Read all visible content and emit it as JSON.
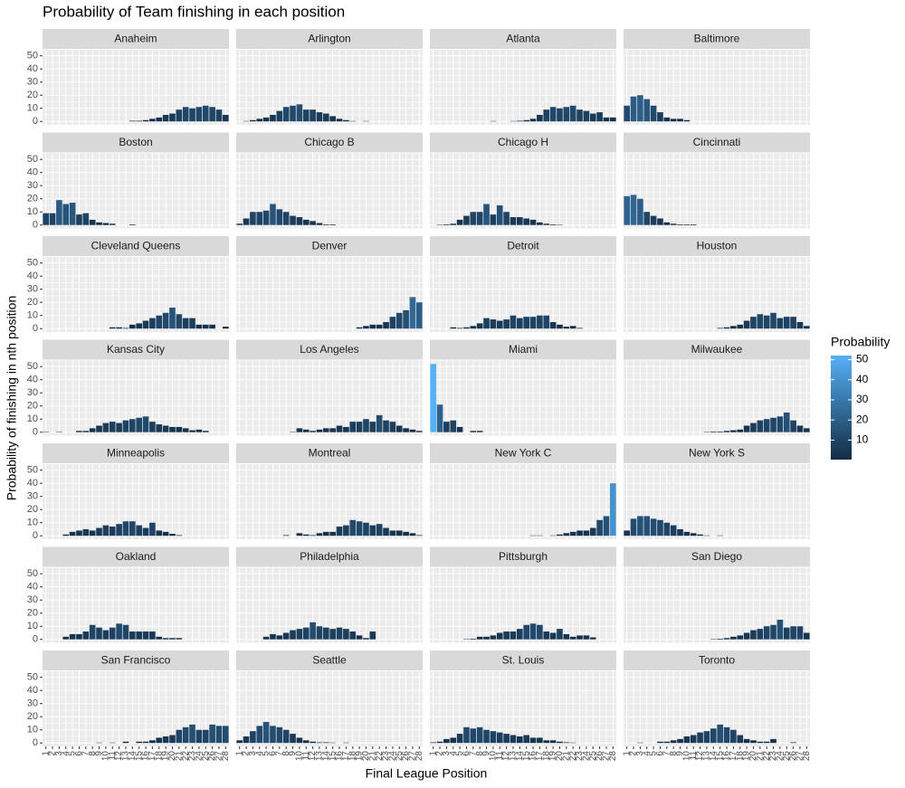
{
  "chart_data": {
    "type": "bar",
    "title": "Probability of Team finishing in each position",
    "x_label": "Final League Position",
    "y_label": "Probability of finishing in nth position",
    "categories": [
      "1",
      "2",
      "3",
      "4",
      "5",
      "6",
      "7",
      "8",
      "9",
      "10",
      "11",
      "12",
      "13",
      "14",
      "15",
      "16",
      "17",
      "18",
      "19",
      "20",
      "21",
      "22",
      "23",
      "24",
      "25",
      "26",
      "27",
      "28"
    ],
    "ylim": [
      -2.6,
      54.6
    ],
    "yticks": [
      0,
      10,
      20,
      30,
      40,
      50
    ],
    "grid": true,
    "color_scale": {
      "title": "Probability",
      "ticks": [
        10,
        20,
        30,
        40,
        50
      ],
      "low": "#132B43",
      "high": "#56B1F7"
    },
    "facets": [
      {
        "name": "Anaheim",
        "values": [
          null,
          null,
          null,
          null,
          null,
          null,
          null,
          null,
          null,
          null,
          null,
          null,
          null,
          0.5,
          0.5,
          1,
          2,
          3,
          5,
          6,
          9,
          11,
          10,
          11,
          12,
          11,
          9,
          5
        ]
      },
      {
        "name": "Arlington",
        "values": [
          null,
          0.3,
          1,
          2,
          3,
          5,
          8,
          11,
          12,
          13,
          9,
          9,
          7,
          6,
          4,
          2,
          1,
          0.3,
          null,
          0.3,
          null,
          null,
          null,
          null,
          null,
          null,
          null,
          null
        ]
      },
      {
        "name": "Atlanta",
        "values": [
          null,
          null,
          null,
          null,
          null,
          null,
          null,
          null,
          null,
          0.3,
          null,
          null,
          0.3,
          0.5,
          1,
          2,
          5,
          9,
          11,
          10,
          11,
          12,
          9,
          8,
          6,
          7,
          3,
          3
        ]
      },
      {
        "name": "Baltimore",
        "values": [
          12,
          19,
          20,
          17,
          12,
          7,
          3,
          2,
          2,
          1,
          null,
          null,
          null,
          null,
          null,
          null,
          null,
          null,
          null,
          null,
          null,
          null,
          null,
          null,
          null,
          null,
          null,
          null
        ]
      },
      {
        "name": "Boston",
        "values": [
          9,
          9,
          19,
          16,
          17,
          8,
          9,
          4,
          2,
          1.5,
          1,
          null,
          null,
          0.5,
          null,
          null,
          null,
          null,
          null,
          null,
          null,
          null,
          null,
          null,
          null,
          null,
          null,
          null
        ]
      },
      {
        "name": "Chicago B",
        "values": [
          1,
          5,
          10,
          10,
          11,
          16,
          12,
          10,
          7,
          6,
          4,
          3,
          1.5,
          0.5,
          0.5,
          null,
          null,
          null,
          null,
          null,
          null,
          null,
          null,
          null,
          null,
          null,
          null,
          null
        ]
      },
      {
        "name": "Chicago H",
        "values": [
          null,
          0.3,
          0.5,
          1,
          4,
          7,
          10,
          10,
          16,
          8,
          15,
          10,
          6,
          6,
          5,
          4,
          2,
          1,
          0.5,
          0.3,
          null,
          null,
          null,
          null,
          null,
          null,
          null,
          null
        ]
      },
      {
        "name": "Cincinnati",
        "values": [
          22,
          23,
          20,
          10,
          7,
          5,
          2,
          1,
          0.5,
          0.5,
          0.5,
          null,
          null,
          null,
          null,
          null,
          null,
          null,
          null,
          null,
          null,
          null,
          null,
          null,
          null,
          null,
          null,
          null
        ]
      },
      {
        "name": "Cleveland Queens",
        "values": [
          null,
          null,
          null,
          null,
          null,
          null,
          null,
          null,
          null,
          null,
          1,
          1,
          0.5,
          3,
          4,
          6,
          8,
          10,
          12,
          16,
          11,
          8,
          8,
          3,
          3,
          3,
          null,
          1.5
        ]
      },
      {
        "name": "Denver",
        "values": [
          null,
          null,
          null,
          null,
          null,
          null,
          null,
          null,
          null,
          null,
          null,
          null,
          null,
          null,
          null,
          null,
          null,
          null,
          1,
          2,
          3,
          3,
          5,
          9,
          12,
          14,
          24,
          20
        ]
      },
      {
        "name": "Detroit",
        "values": [
          null,
          null,
          null,
          1,
          0.5,
          1,
          2,
          4,
          8,
          7,
          6,
          7,
          10,
          8,
          9,
          9,
          10,
          10,
          5,
          3,
          1.5,
          2,
          0.5,
          null,
          null,
          null,
          null,
          null
        ]
      },
      {
        "name": "Houston",
        "values": [
          null,
          null,
          null,
          null,
          null,
          null,
          null,
          null,
          null,
          null,
          null,
          null,
          null,
          null,
          0.5,
          1,
          2,
          3,
          6,
          9,
          11,
          10,
          12,
          8,
          9,
          9,
          5,
          2
        ]
      },
      {
        "name": "Kansas City",
        "values": [
          0.3,
          null,
          0.3,
          null,
          null,
          1,
          1,
          3,
          5,
          7,
          8,
          7,
          9,
          10,
          11,
          12,
          8,
          6,
          5,
          4,
          4,
          3,
          1.5,
          2,
          1,
          null,
          null,
          null
        ]
      },
      {
        "name": "Los Angeles",
        "values": [
          null,
          null,
          null,
          null,
          null,
          null,
          null,
          null,
          0.3,
          3,
          2,
          1,
          2,
          3,
          3,
          5,
          4,
          8,
          8,
          10,
          8,
          13,
          9,
          8,
          5,
          3,
          2,
          1
        ]
      },
      {
        "name": "Miami",
        "values": [
          52,
          21,
          8,
          9,
          4,
          null,
          1,
          1,
          null,
          null,
          null,
          null,
          null,
          null,
          null,
          null,
          null,
          null,
          null,
          null,
          null,
          null,
          null,
          null,
          null,
          null,
          null,
          null
        ]
      },
      {
        "name": "Milwaukee",
        "values": [
          null,
          null,
          null,
          null,
          null,
          null,
          null,
          null,
          null,
          null,
          null,
          null,
          0.3,
          0.5,
          0.5,
          1,
          1.5,
          2,
          5,
          7,
          9,
          10,
          11,
          12,
          15,
          9,
          5,
          3
        ]
      },
      {
        "name": "Minneapolis",
        "values": [
          null,
          null,
          null,
          1,
          3,
          4,
          5,
          4,
          6,
          8,
          7,
          9,
          11,
          11,
          8,
          6,
          10,
          4,
          3,
          1.5,
          0.5,
          null,
          null,
          null,
          null,
          null,
          null,
          null
        ]
      },
      {
        "name": "Montreal",
        "values": [
          null,
          null,
          null,
          null,
          null,
          null,
          null,
          0.5,
          null,
          2,
          1,
          0.5,
          2,
          3,
          3,
          7,
          8,
          12,
          11,
          10,
          8,
          9,
          6,
          4,
          4,
          3,
          2,
          0.5
        ]
      },
      {
        "name": "New York C",
        "values": [
          null,
          null,
          null,
          null,
          null,
          null,
          null,
          null,
          null,
          null,
          null,
          null,
          null,
          null,
          null,
          0.3,
          0.3,
          null,
          0.3,
          1,
          2,
          3,
          4,
          4,
          6,
          12,
          15,
          40
        ]
      },
      {
        "name": "New York S",
        "values": [
          4,
          13,
          15,
          15,
          13,
          12,
          10,
          8,
          5,
          3,
          2,
          1,
          0.3,
          null,
          0.3,
          null,
          null,
          null,
          null,
          null,
          null,
          null,
          null,
          null,
          null,
          null,
          null,
          null
        ]
      },
      {
        "name": "Oakland",
        "values": [
          null,
          null,
          null,
          2,
          4,
          4,
          6,
          11,
          9,
          7,
          9,
          12,
          11,
          6,
          6,
          6,
          6,
          2,
          1,
          1,
          1,
          null,
          null,
          null,
          null,
          null,
          null,
          null
        ]
      },
      {
        "name": "Philadelphia",
        "values": [
          null,
          null,
          null,
          null,
          2,
          4,
          3,
          5,
          7,
          8,
          9,
          13,
          10,
          9,
          8,
          9,
          8,
          6,
          3,
          1,
          6,
          null,
          null,
          null,
          null,
          null,
          null,
          null
        ]
      },
      {
        "name": "Pittsburgh",
        "values": [
          null,
          null,
          null,
          null,
          null,
          0.3,
          0.5,
          2,
          2,
          3,
          5,
          6,
          6,
          8,
          11,
          12,
          11,
          6,
          5,
          8,
          4,
          2,
          3,
          3,
          1.5,
          null,
          null,
          null
        ]
      },
      {
        "name": "San Diego",
        "values": [
          null,
          null,
          null,
          null,
          null,
          null,
          null,
          null,
          null,
          null,
          null,
          null,
          null,
          0.3,
          0.5,
          1,
          2,
          3,
          5,
          7,
          8,
          10,
          11,
          15,
          9,
          10,
          10,
          5
        ]
      },
      {
        "name": "San Francisco",
        "values": [
          null,
          null,
          null,
          null,
          null,
          null,
          null,
          null,
          0.3,
          null,
          0.3,
          null,
          1,
          null,
          1,
          1,
          2,
          4,
          5,
          6,
          10,
          12,
          14,
          10,
          10,
          14,
          13,
          13
        ]
      },
      {
        "name": "Seattle",
        "values": [
          2,
          5,
          9,
          13,
          16,
          13,
          12,
          10,
          7,
          4,
          2,
          1,
          0.5,
          0.5,
          0.3,
          null,
          0.3,
          null,
          null,
          null,
          null,
          null,
          null,
          null,
          null,
          null,
          null,
          null
        ]
      },
      {
        "name": "St. Louis",
        "values": [
          0.5,
          1,
          3,
          4,
          7,
          12,
          11,
          12,
          10,
          9,
          8,
          7,
          6,
          5,
          6,
          4,
          4,
          2,
          2,
          1,
          0.5,
          0.3,
          null,
          null,
          null,
          null,
          null,
          null
        ]
      },
      {
        "name": "Toronto",
        "values": [
          null,
          null,
          0.3,
          null,
          null,
          1,
          1,
          2,
          3,
          5,
          6,
          8,
          9,
          11,
          14,
          12,
          10,
          6,
          3,
          2,
          1,
          1,
          3,
          null,
          null,
          0.5,
          null,
          null
        ]
      }
    ]
  }
}
